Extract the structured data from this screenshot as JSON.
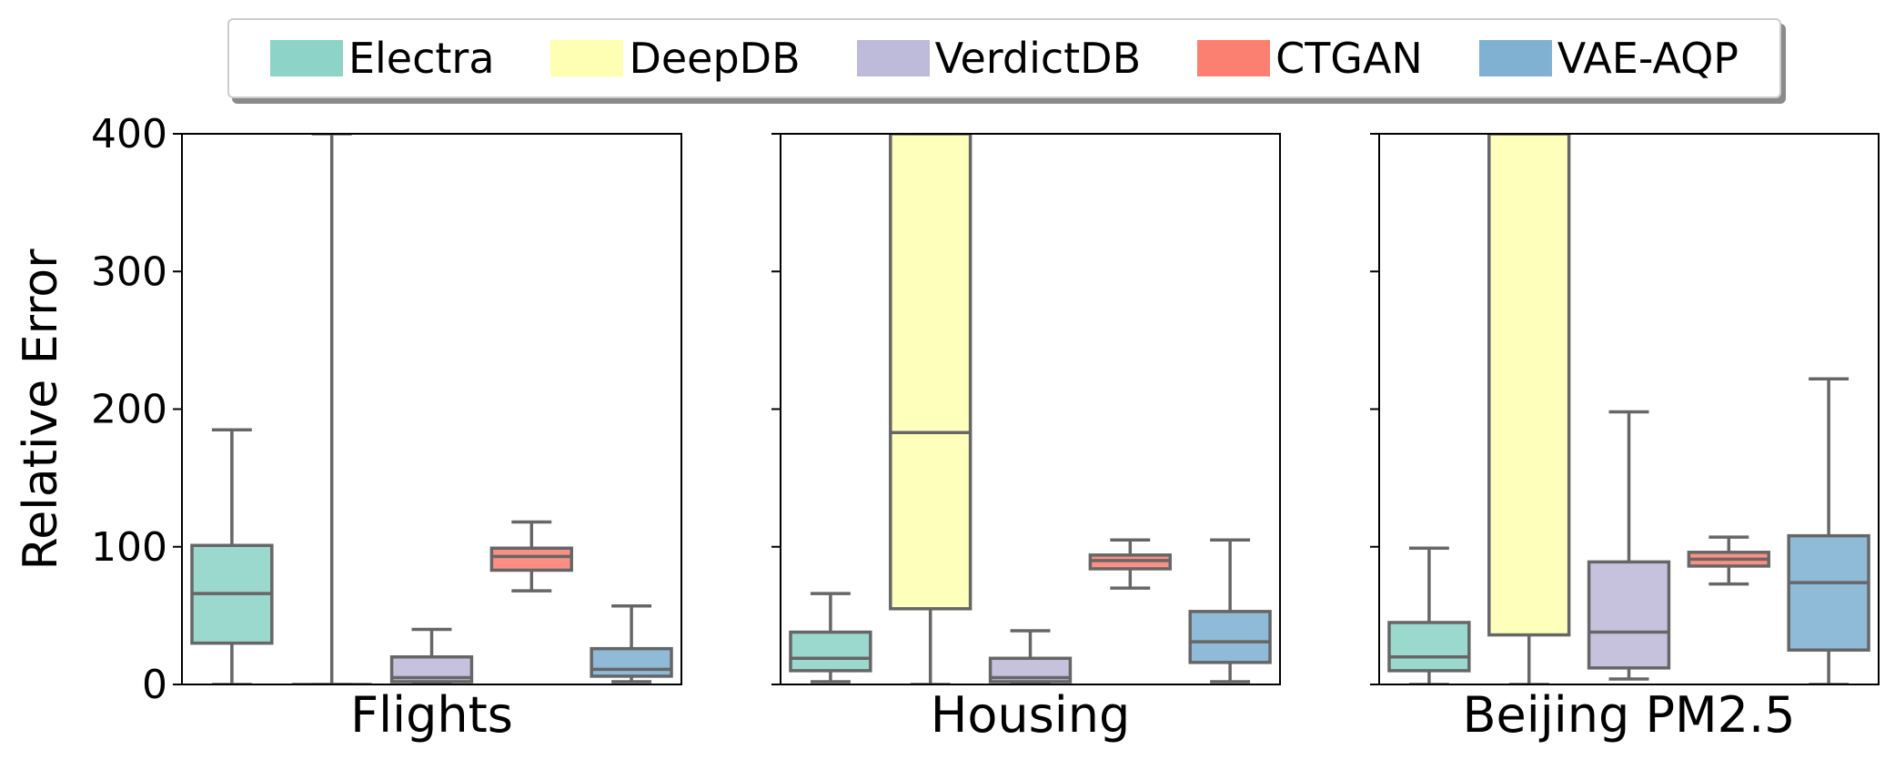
{
  "chart_data": {
    "type": "box",
    "ylabel": "Relative Error",
    "ylim": [
      0,
      400
    ],
    "yticks": [
      0,
      100,
      200,
      300,
      400
    ],
    "legend_position": "top-center",
    "series": [
      {
        "name": "Electra",
        "color": "#8dd3c7"
      },
      {
        "name": "DeepDB",
        "color": "#ffffb3"
      },
      {
        "name": "VerdictDB",
        "color": "#bebada"
      },
      {
        "name": "CTGAN",
        "color": "#fb8072"
      },
      {
        "name": "VAE-AQP",
        "color": "#80b1d3"
      }
    ],
    "panels": [
      {
        "title": "Flights",
        "boxes": [
          {
            "series": "Electra",
            "whisker_low": 0,
            "q1": 30,
            "median": 66,
            "q3": 101,
            "whisker_high": 185
          },
          {
            "series": "DeepDB",
            "whisker_low": 0,
            "q1": 0,
            "median": 0,
            "q3": 0,
            "whisker_high": 400
          },
          {
            "series": "VerdictDB",
            "whisker_low": 0,
            "q1": 2,
            "median": 5,
            "q3": 20,
            "whisker_high": 40
          },
          {
            "series": "CTGAN",
            "whisker_low": 68,
            "q1": 83,
            "median": 93,
            "q3": 99,
            "whisker_high": 118
          },
          {
            "series": "VAE-AQP",
            "whisker_low": 2,
            "q1": 6,
            "median": 11,
            "q3": 26,
            "whisker_high": 57
          }
        ]
      },
      {
        "title": "Housing",
        "boxes": [
          {
            "series": "Electra",
            "whisker_low": 2,
            "q1": 10,
            "median": 19,
            "q3": 38,
            "whisker_high": 66
          },
          {
            "series": "DeepDB",
            "whisker_low": 0,
            "q1": 55,
            "median": 183,
            "q3": 400,
            "whisker_high": 400
          },
          {
            "series": "VerdictDB",
            "whisker_low": 0,
            "q1": 2,
            "median": 5,
            "q3": 19,
            "whisker_high": 39
          },
          {
            "series": "CTGAN",
            "whisker_low": 70,
            "q1": 84,
            "median": 90,
            "q3": 94,
            "whisker_high": 105
          },
          {
            "series": "VAE-AQP",
            "whisker_low": 2,
            "q1": 16,
            "median": 31,
            "q3": 53,
            "whisker_high": 105
          }
        ]
      },
      {
        "title": "Beijing PM2.5",
        "boxes": [
          {
            "series": "Electra",
            "whisker_low": 0,
            "q1": 10,
            "median": 20,
            "q3": 45,
            "whisker_high": 99
          },
          {
            "series": "DeepDB",
            "whisker_low": 0,
            "q1": 36,
            "median": 400,
            "q3": 400,
            "whisker_high": 400
          },
          {
            "series": "VerdictDB",
            "whisker_low": 4,
            "q1": 12,
            "median": 38,
            "q3": 89,
            "whisker_high": 198
          },
          {
            "series": "CTGAN",
            "whisker_low": 73,
            "q1": 86,
            "median": 91,
            "q3": 96,
            "whisker_high": 107
          },
          {
            "series": "VAE-AQP",
            "whisker_low": 0,
            "q1": 25,
            "median": 74,
            "q3": 108,
            "whisker_high": 222
          }
        ]
      }
    ]
  }
}
